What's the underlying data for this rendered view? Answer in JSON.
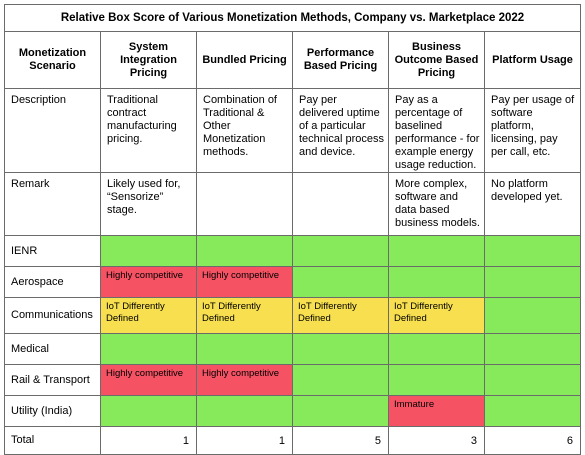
{
  "title": "Relative Box Score of Various Monetization Methods, Company vs. Marketplace 2022",
  "columns": [
    "Monetization Scenario",
    "System Integration Pricing",
    "Bundled Pricing",
    "Performance Based Pricing",
    "Business Outcome Based Pricing",
    "Platform Usage"
  ],
  "description": {
    "label": "Description",
    "cells": [
      "Traditional contract manufacturing pricing.",
      "Combination of Traditional & Other Monetization methods.",
      "Pay per delivered uptime of a particular technical process and device.",
      "Pay as a percentage of baselined performance - for example energy usage reduction.",
      "Pay per usage of software platform, licensing, pay per call, etc."
    ]
  },
  "remark": {
    "label": "Remark",
    "cells": [
      "Likely used for, “Sensorize” stage.",
      "",
      "",
      "More complex, software and data based business models.",
      "No platform developed yet."
    ]
  },
  "colors": {
    "green": "#86ea5a",
    "red": "#f55263",
    "yellow": "#f7df4f"
  },
  "scenarios": [
    {
      "label": "IENR",
      "cells": [
        {
          "status": "green",
          "text": ""
        },
        {
          "status": "green",
          "text": ""
        },
        {
          "status": "green",
          "text": ""
        },
        {
          "status": "green",
          "text": ""
        },
        {
          "status": "green",
          "text": ""
        }
      ]
    },
    {
      "label": "Aerospace",
      "cells": [
        {
          "status": "red",
          "text": "Highly competitive"
        },
        {
          "status": "red",
          "text": "Highly competitive"
        },
        {
          "status": "green",
          "text": ""
        },
        {
          "status": "green",
          "text": ""
        },
        {
          "status": "green",
          "text": ""
        }
      ]
    },
    {
      "label": "Communications",
      "cells": [
        {
          "status": "yellow",
          "text": "IoT Differently Defined"
        },
        {
          "status": "yellow",
          "text": "IoT Differently Defined"
        },
        {
          "status": "yellow",
          "text": "IoT Differently Defined"
        },
        {
          "status": "yellow",
          "text": "IoT Differently Defined"
        },
        {
          "status": "green",
          "text": ""
        }
      ]
    },
    {
      "label": "Medical",
      "cells": [
        {
          "status": "green",
          "text": ""
        },
        {
          "status": "green",
          "text": ""
        },
        {
          "status": "green",
          "text": ""
        },
        {
          "status": "green",
          "text": ""
        },
        {
          "status": "green",
          "text": ""
        }
      ]
    },
    {
      "label": "Rail & Transport",
      "cells": [
        {
          "status": "red",
          "text": "Highly competitive"
        },
        {
          "status": "red",
          "text": "Highly competitive"
        },
        {
          "status": "green",
          "text": ""
        },
        {
          "status": "green",
          "text": ""
        },
        {
          "status": "green",
          "text": ""
        }
      ]
    },
    {
      "label": "Utility (India)",
      "cells": [
        {
          "status": "green",
          "text": ""
        },
        {
          "status": "green",
          "text": ""
        },
        {
          "status": "green",
          "text": ""
        },
        {
          "status": "red",
          "text": "Immature"
        },
        {
          "status": "green",
          "text": ""
        }
      ]
    }
  ],
  "total": {
    "label": "Total",
    "values": [
      "1",
      "1",
      "5",
      "3",
      "6"
    ]
  }
}
